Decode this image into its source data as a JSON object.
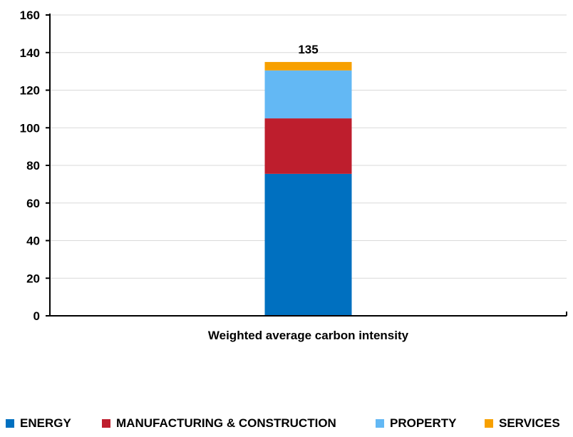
{
  "chart_data": {
    "type": "bar",
    "stacked": true,
    "categories": [
      "Weighted average carbon intensity"
    ],
    "series": [
      {
        "name": "ENERGY",
        "values": [
          75.5
        ],
        "color": "#0070C0"
      },
      {
        "name": "MANUFACTURING & CONSTRUCTION",
        "values": [
          29.5
        ],
        "color": "#BE1E2D"
      },
      {
        "name": "PROPERTY",
        "values": [
          25.5
        ],
        "color": "#63B8F4"
      },
      {
        "name": "SERVICES",
        "values": [
          4.5
        ],
        "color": "#F7A000"
      }
    ],
    "totals": [
      "135"
    ],
    "yticks": [
      "0",
      "20",
      "40",
      "60",
      "80",
      "100",
      "120",
      "140",
      "160"
    ],
    "ylim": [
      0,
      160
    ],
    "grid": true,
    "legend_position": "bottom"
  }
}
